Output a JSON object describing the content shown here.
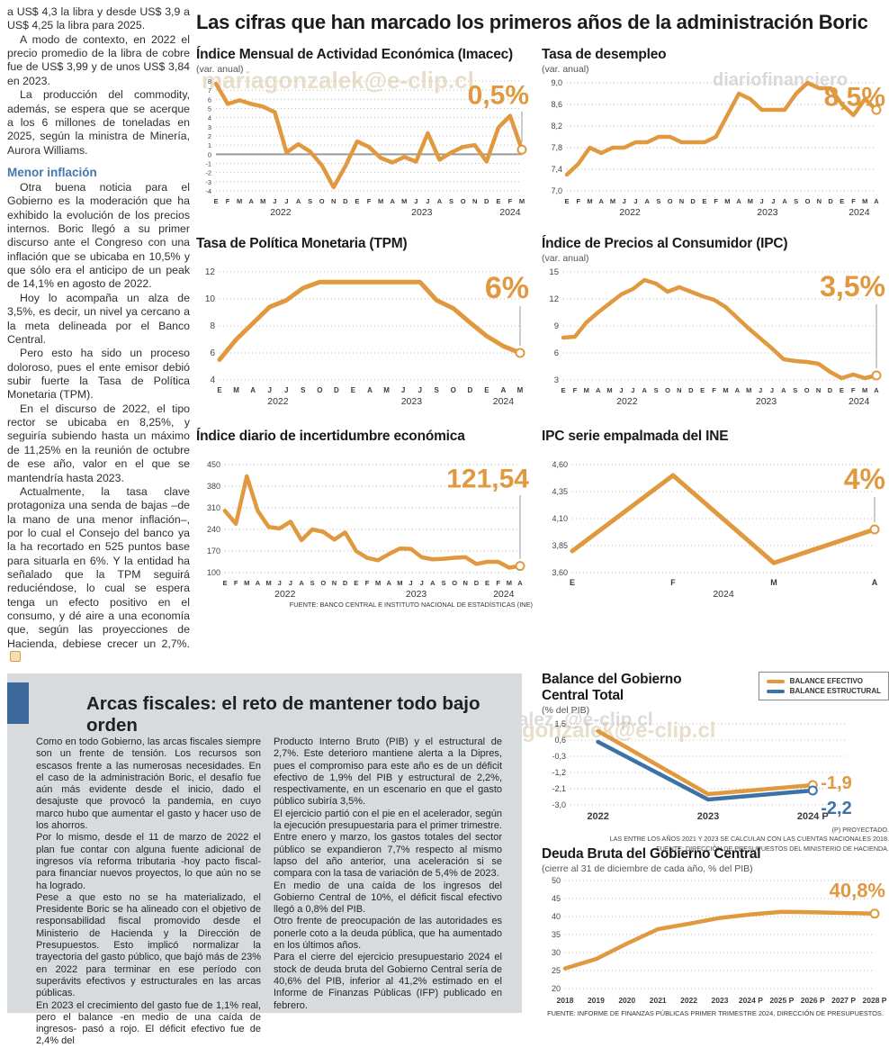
{
  "main_title": "Las cifras que han marcado los primeros años de la administración Boric",
  "left_article": {
    "p1": "a US$ 4,3 la libra y desde US$ 3,9 a US$ 4,25 la libra para 2025.",
    "p2": "A modo de contexto, en 2022 el precio promedio de la libra de cobre fue de US$ 3,99 y de unos US$ 3,84 en 2023.",
    "p3": "La producción del commodity, además, se espera que se acerque a los 6 millones de toneladas en 2025, según la ministra de Minería, Aurora Williams.",
    "subhead": "Menor inflación",
    "p4": "Otra buena noticia para el Gobierno es la moderación que ha exhibido la evolución de los precios internos. Boric llegó a su primer discurso ante el Congreso con una inflación que se ubicaba en 10,5% y que sólo era el anticipo de un peak de 14,1% en agosto de 2022.",
    "p5": "Hoy lo acompaña un alza de 3,5%, es decir, un nivel ya cercano a la meta delineada por el Banco Central.",
    "p6": "Pero esto ha sido un proceso doloroso, pues el ente emisor debió subir fuerte la Tasa de Política Monetaria (TPM).",
    "p7": "En el discurso de 2022, el tipo rector se ubicaba en 8,25%, y seguiría subiendo hasta un máximo de 11,25% en la reunión de octubre de ese año, valor en el que se mantendría hasta 2023.",
    "p8": "Actualmente, la tasa clave protagoniza una senda de bajas –de la mano de una menor inflación–, por lo cual el Consejo del banco ya la ha recortado en 525 puntos base para situarla en 6%. Y la entidad ha señalado que la TPM seguirá reduciéndose, lo cual se espera tenga un efecto positivo en el consumo, y dé aire a una economía que, según las proyecciones de Hacienda, debiese crecer un 2,7%."
  },
  "fiscal": {
    "title": "Arcas fiscales: el reto de mantener todo bajo orden",
    "col1": [
      "Como en todo Gobierno, las arcas fiscales siempre son un frente de tensión. Los recursos son escasos frente a las numerosas necesidades. En el caso de la administración Boric, el desafío fue aún más evidente desde el inicio, dado el desajuste que provocó la pandemia, en cuyo marco hubo que aumentar el gasto y hacer uso de los ahorros.",
      "Por lo mismo, desde el 11 de marzo de 2022 el plan fue contar con alguna fuente adicional de ingresos vía reforma tributaria -hoy pacto fiscal- para financiar nuevos proyectos, lo que aún no se ha logrado.",
      "Pese a que esto no se ha materializado, el Presidente Boric se ha alineado con el objetivo de responsabilidad fiscal promovido desde el Ministerio de Hacienda y la Dirección de Presupuestos. Esto implicó normalizar la trayectoria del gasto público, que bajó más de 23% en 2022 para terminar en ese período con superávits efectivos y estructurales en las arcas públicas.",
      "En 2023 el crecimiento del gasto fue de 1,1% real, pero el balance -en medio de una caída de ingresos-  pasó a rojo. El déficit efectivo fue de 2,4% del"
    ],
    "col2": [
      "Producto Interno Bruto (PIB) y el estructural de 2,7%. Este deterioro mantiene alerta a la Dipres, pues el compromiso para este año es de un déficit efectivo de 1,9% del PIB y estructural de 2,2%, respectivamente, en un escenario en que el gasto público subiría 3,5%.",
      "El ejercicio partió con el pie en el acelerador, según la ejecución presupuestaria para el primer trimestre. Entre enero y marzo, los gastos totales del sector público se expandieron 7,7% respecto al mismo lapso del año anterior, una aceleración si se compara con la tasa de variación de 5,4% de 2023.",
      "En medio de una caída de los ingresos del Gobierno Central de 10%, el déficit fiscal efectivo llegó a 0,8% del PIB.",
      "Otro frente de preocupación de las autoridades es ponerle coto a la deuda pública, que ha aumentado en los últimos años.",
      "Para el cierre del ejercicio presupuestario 2024 el stock de deuda bruta del Gobierno Central sería de 40,6% del PIB, inferior al 41,2% estimado en el Informe de Finanzas Públicas (IFP) publicado en febrero."
    ]
  },
  "watermarks": {
    "wm1": "mariagonzalek@e-clip.cl",
    "wm2": "diariofinanciero",
    "wm3": "diariofinanciero.#agonzalez..@e-clip.cl",
    "wm4": "lagonzalek@e-clip.cl"
  },
  "colors": {
    "line_orange": "#E0993F",
    "line_blue": "#3C72A6",
    "accent_blue": "#4577B0",
    "panel_gray": "#D8DBDE"
  },
  "chart_data": [
    {
      "id": "imacec",
      "type": "line",
      "title": "Índice Mensual de Actividad Económica (Imacec)",
      "subtitle": "(var. anual)",
      "big_value": "0,5%",
      "big_size": 30,
      "pointer": true,
      "ylim": [
        -4,
        8
      ],
      "zero_line": 0,
      "ytick_vals": [
        8,
        7,
        6,
        5,
        4,
        3,
        2,
        1,
        0,
        -1,
        -2,
        -3,
        -4
      ],
      "ytick_labels": [
        "8",
        "7",
        "6",
        "5",
        "4",
        "3",
        "2",
        "1",
        "0",
        "-1",
        "-2",
        "-3",
        "-4"
      ],
      "ylabel_size": 7.5,
      "xlabel_size": 7.5,
      "m": {
        "t": 6,
        "r": 12,
        "b": 30,
        "l": 22
      },
      "xlabels": [
        "E",
        "F",
        "M",
        "A",
        "M",
        "J",
        "J",
        "A",
        "S",
        "O",
        "N",
        "D",
        "E",
        "F",
        "M",
        "A",
        "M",
        "J",
        "J",
        "A",
        "S",
        "O",
        "N",
        "D",
        "E",
        "F",
        "M"
      ],
      "years": [
        {
          "label": "2022",
          "start": 0,
          "end": 11
        },
        {
          "label": "2023",
          "start": 12,
          "end": 23
        },
        {
          "label": "2024",
          "start": 24,
          "end": 26
        }
      ],
      "series": [
        {
          "color": "#E0993F",
          "width": 4.5,
          "values": [
            7.7,
            5.5,
            5.9,
            5.5,
            5.2,
            4.6,
            0.2,
            1.1,
            0.3,
            -1.2,
            -3.6,
            -1.3,
            1.4,
            0.8,
            -0.4,
            -0.9,
            -0.3,
            -0.8,
            2.3,
            -0.6,
            0.2,
            0.8,
            1.0,
            -0.8,
            2.9,
            4.2,
            0.5
          ]
        }
      ]
    },
    {
      "id": "desempleo",
      "type": "line",
      "title": "Tasa de desempleo",
      "subtitle": "(var. anual)",
      "big_value": "8,5%",
      "big_size": 30,
      "pointer": true,
      "ylim": [
        7.0,
        9.0
      ],
      "ytick_vals": [
        9.0,
        8.6,
        8.2,
        7.8,
        7.4,
        7.0
      ],
      "ytick_labels": [
        "9,0",
        "8,6",
        "8,2",
        "7,8",
        "7,4",
        "7,0"
      ],
      "ylabel_size": 9,
      "xlabel_size": 7.5,
      "m": {
        "t": 8,
        "r": 14,
        "b": 30,
        "l": 28
      },
      "xlabels": [
        "E",
        "F",
        "M",
        "A",
        "M",
        "J",
        "J",
        "A",
        "S",
        "O",
        "N",
        "D",
        "E",
        "F",
        "M",
        "A",
        "M",
        "J",
        "J",
        "A",
        "S",
        "O",
        "N",
        "D",
        "E",
        "F",
        "M",
        "A"
      ],
      "years": [
        {
          "label": "2022",
          "start": 0,
          "end": 11
        },
        {
          "label": "2023",
          "start": 12,
          "end": 23
        },
        {
          "label": "2024",
          "start": 24,
          "end": 27
        }
      ],
      "series": [
        {
          "color": "#E0993F",
          "width": 4.5,
          "values": [
            7.3,
            7.5,
            7.8,
            7.7,
            7.8,
            7.8,
            7.9,
            7.9,
            8.0,
            8.0,
            7.9,
            7.9,
            7.9,
            8.0,
            8.4,
            8.8,
            8.7,
            8.5,
            8.5,
            8.5,
            8.8,
            9.0,
            8.9,
            8.9,
            8.6,
            8.4,
            8.7,
            8.5
          ]
        }
      ]
    },
    {
      "id": "tpm",
      "type": "line",
      "title": "Tasa de Política Monetaria (TPM)",
      "big_value": "6%",
      "big_size": 34,
      "pointer": true,
      "ylim": [
        4,
        12
      ],
      "ytick_vals": [
        12,
        10,
        8,
        6,
        4
      ],
      "ytick_labels": [
        "12",
        "10",
        "8",
        "6",
        "4"
      ],
      "ylabel_size": 10,
      "xlabel_size": 8,
      "m": {
        "t": 8,
        "r": 14,
        "b": 30,
        "l": 26
      },
      "xlabels": [
        "E",
        "M",
        "A",
        "J",
        "J",
        "S",
        "O",
        "D",
        "E",
        "A",
        "M",
        "J",
        "J",
        "S",
        "O",
        "D",
        "E",
        "A",
        "M"
      ],
      "years": [
        {
          "label": "2022",
          "start": 0,
          "end": 7
        },
        {
          "label": "2023",
          "start": 8,
          "end": 15
        },
        {
          "label": "2024",
          "start": 16,
          "end": 18
        }
      ],
      "series": [
        {
          "color": "#E0993F",
          "width": 5,
          "values": [
            5.5,
            7.0,
            8.2,
            9.4,
            9.9,
            10.8,
            11.25,
            11.25,
            11.25,
            11.25,
            11.25,
            11.25,
            11.25,
            9.9,
            9.3,
            8.25,
            7.25,
            6.5,
            6.0
          ]
        }
      ]
    },
    {
      "id": "ipc",
      "type": "line",
      "title": "Índice de Precios al Consumidor (IPC)",
      "subtitle": "(var. anual)",
      "big_value": "3,5%",
      "big_size": 32,
      "pointer": true,
      "ylim": [
        3,
        15
      ],
      "ytick_vals": [
        15,
        12,
        9,
        6,
        3
      ],
      "ytick_labels": [
        "15",
        "12",
        "9",
        "6",
        "3"
      ],
      "ylabel_size": 9.5,
      "xlabel_size": 7.5,
      "m": {
        "t": 8,
        "r": 14,
        "b": 30,
        "l": 24
      },
      "xlabels": [
        "E",
        "F",
        "M",
        "A",
        "M",
        "J",
        "J",
        "A",
        "S",
        "O",
        "N",
        "D",
        "E",
        "F",
        "M",
        "A",
        "M",
        "J",
        "J",
        "A",
        "S",
        "O",
        "N",
        "D",
        "E",
        "F",
        "M",
        "A"
      ],
      "years": [
        {
          "label": "2022",
          "start": 0,
          "end": 11
        },
        {
          "label": "2023",
          "start": 12,
          "end": 23
        },
        {
          "label": "2024",
          "start": 24,
          "end": 27
        }
      ],
      "series": [
        {
          "color": "#E0993F",
          "width": 4.5,
          "values": [
            7.7,
            7.8,
            9.4,
            10.5,
            11.5,
            12.5,
            13.1,
            14.1,
            13.7,
            12.8,
            13.3,
            12.8,
            12.3,
            11.9,
            11.1,
            9.9,
            8.7,
            7.6,
            6.5,
            5.3,
            5.1,
            5.0,
            4.8,
            3.9,
            3.2,
            3.6,
            3.2,
            3.5
          ]
        }
      ]
    },
    {
      "id": "incertidumbre",
      "type": "line",
      "title": "Índice diario de incertidumbre económica",
      "big_value": "121,54",
      "big_size": 30,
      "pointer": true,
      "ylim": [
        100,
        450
      ],
      "ytick_vals": [
        450,
        380,
        310,
        240,
        170,
        100
      ],
      "ytick_labels": [
        "450",
        "380",
        "310",
        "240",
        "170",
        "100"
      ],
      "ylabel_size": 9,
      "xlabel_size": 7.5,
      "m": {
        "t": 8,
        "r": 14,
        "b": 30,
        "l": 32
      },
      "xlabels": [
        "E",
        "F",
        "M",
        "A",
        "M",
        "J",
        "J",
        "A",
        "S",
        "O",
        "N",
        "D",
        "E",
        "F",
        "M",
        "A",
        "M",
        "J",
        "J",
        "A",
        "S",
        "O",
        "N",
        "D",
        "E",
        "F",
        "M",
        "A"
      ],
      "years": [
        {
          "label": "2022",
          "start": 0,
          "end": 11
        },
        {
          "label": "2023",
          "start": 12,
          "end": 23
        },
        {
          "label": "2024",
          "start": 24,
          "end": 27
        }
      ],
      "series": [
        {
          "color": "#E0993F",
          "width": 4.5,
          "values": [
            300,
            258,
            412,
            300,
            248,
            243,
            265,
            205,
            240,
            232,
            207,
            230,
            170,
            148,
            140,
            160,
            178,
            177,
            150,
            143,
            145,
            148,
            150,
            128,
            135,
            135,
            116,
            121.54
          ]
        }
      ],
      "source": "FUENTE: BANCO CENTRAL E INSTITUTO NACIONAL DE ESTADÍSTICAS (INE)"
    },
    {
      "id": "ipc_empalmada",
      "type": "line",
      "title": "IPC serie empalmada del INE",
      "big_value": "4%",
      "big_size": 32,
      "pointer": true,
      "ylim": [
        3.6,
        4.6
      ],
      "ytick_vals": [
        4.6,
        4.35,
        4.1,
        3.85,
        3.6
      ],
      "ytick_labels": [
        "4,60",
        "4,35",
        "4,10",
        "3,85",
        "3,60"
      ],
      "ylabel_size": 9,
      "xlabel_size": 9,
      "m": {
        "t": 8,
        "r": 16,
        "b": 30,
        "l": 34
      },
      "xlabels": [
        "E",
        "F",
        "M",
        "A"
      ],
      "years": [
        {
          "label": "2024",
          "start": 0,
          "end": 3
        }
      ],
      "series": [
        {
          "color": "#E0993F",
          "width": 5,
          "values": [
            3.8,
            4.5,
            3.69,
            4.0
          ]
        }
      ]
    },
    {
      "id": "balance",
      "type": "line",
      "title": "Balance del Gobierno Central Total",
      "subtitle": "(% del PIB)",
      "pointer": false,
      "ylim": [
        -3.0,
        1.5
      ],
      "ytick_vals": [
        1.5,
        0.6,
        -0.3,
        -1.2,
        -2.1,
        -3.0
      ],
      "ytick_labels": [
        "1,5",
        "0,6",
        "-0,3",
        "-1,2",
        "-2,1",
        "-3,0"
      ],
      "ylabel_size": 9,
      "xlabel_size": 11,
      "m": {
        "t": 8,
        "r": 48,
        "b": 22,
        "l": 32
      },
      "xfrac": [
        0.1,
        0.5,
        0.88
      ],
      "xlabels": [
        "2022",
        "2023",
        "2024 P"
      ],
      "series": [
        {
          "name": "BALANCE EFECTIVO",
          "color": "#E0993F",
          "width": 4.5,
          "values": [
            1.1,
            -2.4,
            -1.9
          ],
          "end_label": {
            "text": "-1,9",
            "dy": 0
          }
        },
        {
          "name": "BALANCE ESTRUCTURAL",
          "color": "#3C72A6",
          "width": 4.5,
          "values": [
            0.5,
            -2.7,
            -2.2
          ],
          "end_label": {
            "text": "-2,2",
            "dy": 22
          }
        }
      ],
      "footnotes": [
        "(P) PROYECTADO.",
        "LAS ENTRE LOS AÑOS 2021 Y 2023 SE CALCULAN  CON LAS CUENTAS NACIONALES 2018.",
        "FUENTE: DIRECCIÓN DE PRESUPUESTOS DEL MINISTERIO DE HACIENDA."
      ]
    },
    {
      "id": "deuda",
      "type": "line",
      "title": "Deuda Bruta del Gobierno Central",
      "subtitle": "(cierre al 31 de diciembre de cada año, % del PIB)",
      "big_value": "40,8%",
      "big_size": 22,
      "pointer": false,
      "ylim": [
        20,
        50
      ],
      "ytick_vals": [
        50,
        45,
        40,
        35,
        30,
        25,
        20
      ],
      "ytick_labels": [
        "50",
        "45",
        "40",
        "35",
        "30",
        "25",
        "20"
      ],
      "ylabel_size": 9,
      "xlabel_size": 8.5,
      "m": {
        "t": 6,
        "r": 16,
        "b": 22,
        "l": 26
      },
      "xlabels": [
        "2018",
        "2019",
        "2020",
        "2021",
        "2022",
        "2023",
        "2024 P",
        "2025 P",
        "2026 P",
        "2027 P",
        "2028 P"
      ],
      "series": [
        {
          "color": "#E0993F",
          "width": 4.5,
          "values": [
            25.6,
            28.2,
            32.5,
            36.5,
            38.0,
            39.6,
            40.6,
            41.3,
            41.2,
            41.0,
            40.8
          ]
        }
      ],
      "source": "FUENTE: INFORME DE FINANZAS PÚBLICAS PRIMER TRIMESTRE 2024, DIRECCIÓN DE PRESUPUESTOS."
    }
  ]
}
